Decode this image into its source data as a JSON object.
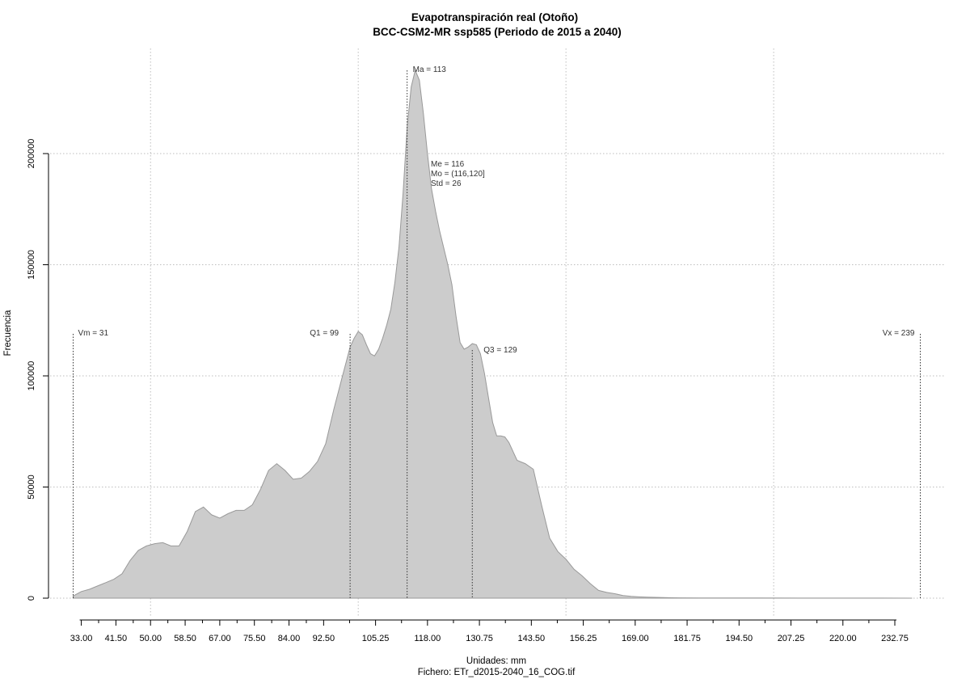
{
  "chart_data": {
    "type": "area",
    "title": "Evapotranspiración real (Otoño)",
    "subtitle": "BCC-CSM2-MR ssp585 (Periodo de 2015 a 2040)",
    "xlabel": "Unidades: mm",
    "caption": "Fichero: ETr_d2015-2040_16_COG.tif",
    "ylabel": "Frecuencia",
    "xlim": [
      31,
      239
    ],
    "ylim": [
      0,
      240000
    ],
    "x_ticks": [
      33,
      41.5,
      50,
      58.5,
      67,
      75.5,
      84,
      92.5,
      105.25,
      118,
      130.75,
      143.5,
      156.25,
      169,
      181.75,
      194.5,
      207.25,
      220,
      232.75
    ],
    "x_tick_labels": [
      "33.00",
      "41.50",
      "50.00",
      "58.50",
      "67.00",
      "75.50",
      "84.00",
      "92.50",
      "105.25",
      "118.00",
      "130.75",
      "143.50",
      "156.25",
      "169.00",
      "181.75",
      "194.50",
      "207.25",
      "220.00",
      "232.75"
    ],
    "y_ticks": [
      0,
      50000,
      100000,
      150000,
      200000
    ],
    "y_tick_labels": [
      "0",
      "50000",
      "100000",
      "150000",
      "200000"
    ],
    "grid_x": [
      50,
      101,
      152,
      203
    ],
    "grid_y": [
      0,
      50000,
      100000,
      150000,
      200000
    ],
    "density": {
      "x": [
        31,
        33,
        35,
        37,
        39,
        41,
        43,
        45,
        47,
        49,
        51,
        53,
        55,
        57,
        59,
        61,
        63,
        65,
        67,
        69,
        71,
        73,
        75,
        77,
        79,
        81,
        83,
        85,
        87,
        89,
        91,
        93,
        95,
        97,
        98,
        99,
        100,
        101,
        102,
        103,
        104,
        105,
        106,
        107,
        108,
        109,
        110,
        111,
        112,
        113,
        114,
        115,
        116,
        117,
        118,
        119,
        120,
        121,
        122,
        123,
        124,
        125,
        126,
        127,
        128,
        129,
        130,
        131,
        132,
        133,
        134,
        135,
        136,
        137,
        138,
        140,
        142,
        144,
        146,
        148,
        150,
        152,
        154,
        156,
        158,
        160,
        162,
        164,
        166,
        168,
        170,
        172,
        174,
        176,
        178,
        180,
        185,
        190,
        200,
        210,
        220,
        230,
        237
      ],
      "y": [
        1000,
        3000,
        4000,
        5500,
        7000,
        8500,
        11000,
        17000,
        21500,
        23500,
        24500,
        25000,
        23500,
        23500,
        30000,
        39000,
        41000,
        37500,
        36000,
        38000,
        39500,
        39500,
        42000,
        49000,
        57500,
        60500,
        57500,
        53500,
        54000,
        57000,
        61500,
        69500,
        85000,
        99000,
        106000,
        113000,
        117000,
        120000,
        118500,
        114000,
        110000,
        109000,
        112000,
        117000,
        123000,
        130000,
        142000,
        158000,
        182000,
        212000,
        230000,
        237500,
        233000,
        218000,
        200000,
        184000,
        174000,
        165000,
        157500,
        150000,
        141000,
        127000,
        115000,
        112000,
        113000,
        114500,
        114000,
        110000,
        101000,
        90000,
        79000,
        73000,
        73000,
        72500,
        70000,
        62000,
        60500,
        58000,
        42000,
        27000,
        21000,
        17500,
        13000,
        10000,
        6500,
        3500,
        2600,
        2000,
        1200,
        800,
        600,
        450,
        350,
        250,
        180,
        150,
        100,
        80,
        60,
        40,
        30,
        20,
        10
      ]
    },
    "markers": [
      {
        "label": "Vm = 31",
        "x": 31
      },
      {
        "label": "Q1 = 99",
        "x": 99
      },
      {
        "label": "Ma = 113",
        "x": 113
      },
      {
        "label": "Q3 = 129",
        "x": 129
      },
      {
        "label": "Vx = 239",
        "x": 239
      }
    ],
    "stats": [
      "Me = 116",
      "Mo = (116,120]",
      "Std = 26"
    ],
    "fill_color": "#cccccc",
    "line_color": "#999999"
  }
}
